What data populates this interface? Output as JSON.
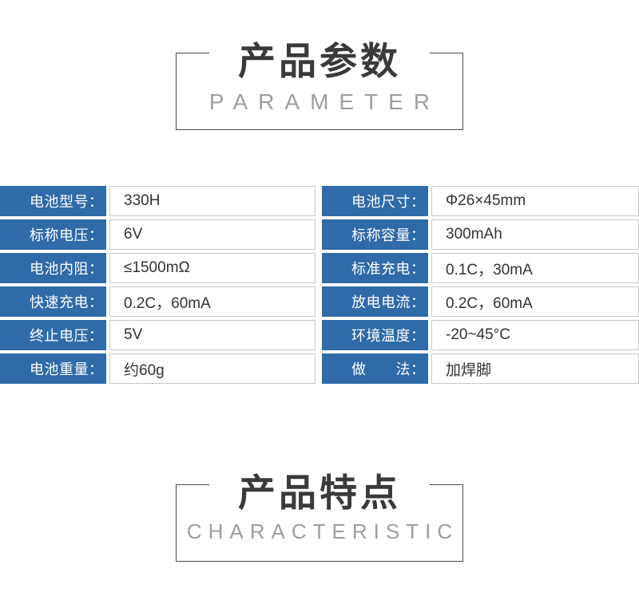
{
  "sections": {
    "parameter": {
      "title_cn": "产品参数",
      "title_en": "PARAMETER"
    },
    "characteristic": {
      "title_cn": "产品特点",
      "title_en": "CHARACTERISTIC"
    }
  },
  "spec_table": {
    "columns": [
      {
        "rows": [
          {
            "label": "电池型号：",
            "value": "330H"
          },
          {
            "label": "标称电压：",
            "value": "6V"
          },
          {
            "label": "电池内阻：",
            "value": "≤1500mΩ"
          },
          {
            "label": "快速充电：",
            "value": "0.2C，60mA"
          },
          {
            "label": "终止电压：",
            "value": "5V"
          },
          {
            "label": "电池重量：",
            "value": "约60g"
          }
        ]
      },
      {
        "rows": [
          {
            "label": "电池尺寸：",
            "value": "Φ26×45mm"
          },
          {
            "label": "标称容量：",
            "value": "300mAh"
          },
          {
            "label": "标准充电：",
            "value": "0.1C，30mA"
          },
          {
            "label": "放电电流：",
            "value": "0.2C，60mA"
          },
          {
            "label": "环境温度：",
            "value": "-20~45°C"
          },
          {
            "label": "做　　法：",
            "value": "加焊脚"
          }
        ]
      }
    ]
  },
  "colors": {
    "label_bg": "#2e6ba8",
    "label_text": "#ffffff",
    "value_text": "#333333",
    "value_border": "#c9c9c9",
    "title_cn": "#3a3a3c",
    "title_en": "#9e9e9e",
    "box_border": "#48484a"
  }
}
